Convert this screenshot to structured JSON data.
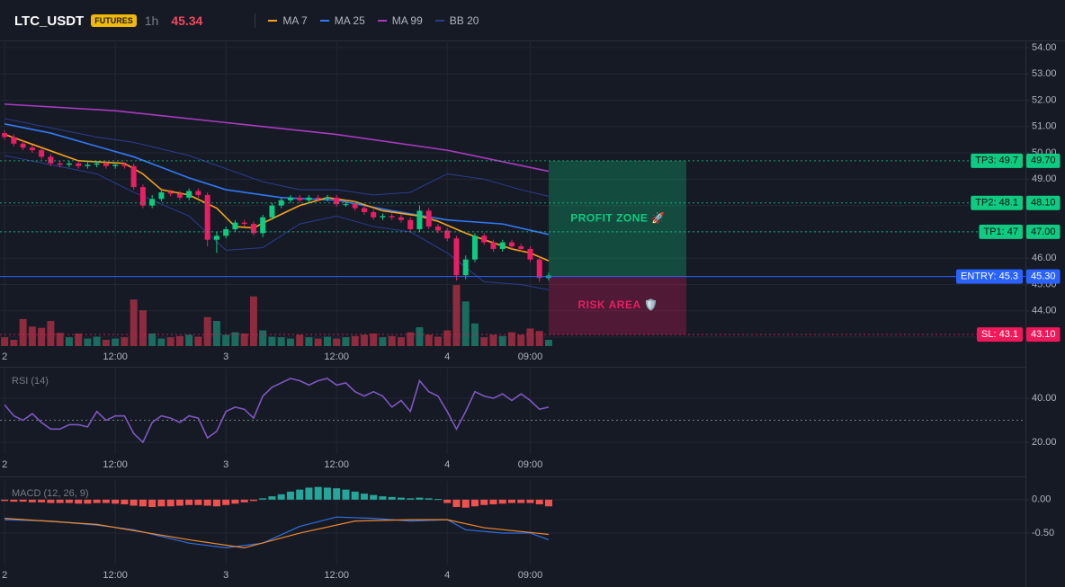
{
  "header": {
    "symbol": "LTC_USDT",
    "badge": "FUTURES",
    "interval": "1h",
    "price": "45.34"
  },
  "chart_data": [
    {
      "type": "candlestick",
      "up_color": "#0ecb81",
      "down_color": "#e91e63",
      "volume_up_color": "#1b6b5e",
      "volume_down_color": "#8e2b3e",
      "xlim": [
        -0.5,
        110.7
      ],
      "ylim": [
        42.66,
        54.27
      ],
      "xticks": [
        {
          "value": 0,
          "label": "2"
        },
        {
          "value": 12,
          "label": "12:00"
        },
        {
          "value": 24,
          "label": "3"
        },
        {
          "value": 36,
          "label": "12:00"
        },
        {
          "value": 48,
          "label": "4"
        },
        {
          "value": 57,
          "label": "09:00"
        }
      ],
      "yticks": [
        {
          "value": 54,
          "label": "54.00"
        },
        {
          "value": 53,
          "label": "53.00"
        },
        {
          "value": 52,
          "label": "52.00"
        },
        {
          "value": 51,
          "label": "51.00"
        },
        {
          "value": 50,
          "label": "50.00"
        },
        {
          "value": 49,
          "label": "49.00"
        },
        {
          "value": 48,
          "label": "48.00"
        },
        {
          "value": 47,
          "label": "47.00"
        },
        {
          "value": 46,
          "label": "46.00"
        },
        {
          "value": 45,
          "label": "45.00"
        },
        {
          "value": 44,
          "label": "44.00"
        },
        {
          "value": 43,
          "label": "43.00"
        }
      ],
      "x": [
        0,
        1,
        2,
        3,
        4,
        5,
        6,
        7,
        8,
        9,
        10,
        11,
        12,
        13,
        14,
        15,
        16,
        17,
        18,
        19,
        20,
        21,
        22,
        23,
        24,
        25,
        26,
        27,
        28,
        29,
        30,
        31,
        32,
        33,
        34,
        35,
        36,
        37,
        38,
        39,
        40,
        41,
        42,
        43,
        44,
        45,
        46,
        47,
        48,
        49,
        50,
        51,
        52,
        53,
        54,
        55,
        56,
        57,
        58,
        59
      ],
      "open": [
        50.75,
        50.6,
        50.35,
        50.2,
        50.1,
        49.85,
        49.6,
        49.55,
        49.6,
        49.5,
        49.55,
        49.6,
        49.5,
        49.55,
        49.5,
        48.7,
        48.0,
        48.25,
        48.5,
        48.45,
        48.3,
        48.55,
        48.4,
        46.7,
        46.85,
        47.1,
        47.35,
        47.3,
        46.95,
        47.55,
        48.0,
        48.2,
        48.3,
        48.2,
        48.3,
        48.25,
        48.3,
        48.05,
        48.05,
        47.9,
        47.75,
        47.55,
        47.6,
        47.55,
        47.45,
        47.1,
        47.8,
        47.2,
        47.05,
        46.75,
        45.35,
        45.95,
        46.85,
        46.6,
        46.35,
        46.6,
        46.45,
        46.35,
        45.95,
        45.25
      ],
      "high": [
        50.85,
        50.7,
        50.45,
        50.3,
        50.2,
        49.95,
        49.7,
        49.7,
        49.7,
        49.65,
        49.7,
        49.7,
        49.65,
        49.65,
        49.6,
        48.8,
        48.4,
        48.65,
        48.6,
        48.55,
        48.65,
        48.65,
        48.5,
        47.0,
        47.2,
        47.45,
        47.45,
        47.4,
        47.65,
        48.1,
        48.3,
        48.4,
        48.4,
        48.4,
        48.4,
        48.4,
        48.4,
        48.15,
        48.15,
        48.0,
        47.85,
        47.7,
        47.7,
        47.65,
        47.55,
        48.0,
        47.9,
        47.3,
        47.15,
        46.85,
        46.1,
        46.95,
        46.95,
        46.7,
        46.7,
        46.7,
        46.55,
        46.45,
        46.05,
        45.45
      ],
      "low": [
        50.5,
        50.25,
        50.1,
        50.0,
        49.75,
        49.5,
        49.45,
        49.45,
        49.4,
        49.4,
        49.45,
        49.4,
        49.4,
        49.4,
        48.6,
        47.9,
        47.9,
        48.15,
        48.35,
        48.2,
        48.2,
        48.3,
        46.45,
        46.2,
        46.75,
        47.0,
        47.2,
        46.85,
        46.8,
        47.45,
        47.9,
        48.1,
        48.1,
        48.1,
        48.15,
        48.15,
        47.95,
        47.95,
        47.8,
        47.65,
        47.45,
        47.45,
        47.45,
        47.35,
        47.0,
        47.0,
        47.1,
        46.95,
        46.65,
        45.15,
        45.2,
        45.85,
        46.5,
        46.25,
        46.25,
        46.35,
        46.25,
        45.85,
        45.1,
        45.15
      ],
      "close": [
        50.6,
        50.35,
        50.2,
        50.1,
        49.85,
        49.6,
        49.55,
        49.6,
        49.5,
        49.55,
        49.6,
        49.5,
        49.55,
        49.5,
        48.7,
        48.0,
        48.25,
        48.5,
        48.45,
        48.3,
        48.55,
        48.4,
        46.7,
        46.85,
        47.1,
        47.35,
        47.3,
        46.95,
        47.55,
        48.0,
        48.2,
        48.3,
        48.2,
        48.3,
        48.25,
        48.3,
        48.05,
        48.05,
        47.9,
        47.75,
        47.55,
        47.6,
        47.55,
        47.45,
        47.1,
        47.8,
        47.2,
        47.05,
        46.75,
        45.35,
        45.95,
        46.85,
        46.6,
        46.35,
        46.6,
        46.45,
        46.35,
        45.95,
        45.25,
        45.34
      ],
      "volume": [
        14,
        10,
        43,
        31,
        29,
        40,
        21,
        14,
        20,
        12,
        15,
        10,
        12,
        14,
        74,
        57,
        20,
        12,
        14,
        16,
        18,
        15,
        46,
        40,
        18,
        22,
        20,
        79,
        25,
        15,
        14,
        12,
        18,
        14,
        12,
        15,
        12,
        14,
        16,
        18,
        20,
        14,
        16,
        14,
        22,
        30,
        18,
        15,
        25,
        97,
        71,
        36,
        14,
        18,
        16,
        22,
        18,
        28,
        24,
        10
      ],
      "overlays": [
        {
          "name": "MA 7",
          "color": "#f7a21b",
          "x": [
            0,
            4,
            8,
            13,
            15,
            17,
            20,
            23,
            25,
            27,
            29,
            32,
            35,
            38,
            41,
            45,
            47,
            50,
            52,
            55,
            57,
            59
          ],
          "values": [
            50.7,
            50.2,
            49.7,
            49.6,
            49.2,
            48.6,
            48.4,
            47.9,
            47.2,
            47.15,
            47.5,
            48.0,
            48.3,
            48.15,
            47.8,
            47.6,
            47.4,
            46.95,
            46.7,
            46.35,
            46.2,
            45.9
          ]
        },
        {
          "name": "MA 25",
          "color": "#3179f5",
          "x": [
            0,
            5,
            10,
            14,
            20,
            24,
            30,
            36,
            42,
            48,
            54,
            59
          ],
          "values": [
            51.1,
            50.75,
            50.25,
            49.85,
            49.05,
            48.6,
            48.3,
            48.2,
            47.8,
            47.45,
            47.3,
            46.9
          ]
        },
        {
          "name": "MA 99",
          "color": "#a93bc0",
          "x": [
            0,
            12,
            24,
            36,
            48,
            59
          ],
          "values": [
            51.85,
            51.6,
            51.15,
            50.7,
            50.1,
            49.3
          ]
        }
      ],
      "bands": [
        {
          "name": "BB 20",
          "color": "#2b3c8f",
          "x": [
            0,
            10,
            14,
            20,
            24,
            28,
            32,
            36,
            40,
            44,
            48,
            52,
            56,
            59
          ],
          "upper": [
            51.3,
            50.6,
            50.4,
            49.9,
            49.4,
            48.9,
            48.6,
            48.6,
            48.4,
            48.5,
            49.2,
            49.0,
            48.6,
            48.35
          ],
          "lower": [
            49.9,
            49.2,
            48.5,
            47.6,
            46.3,
            46.4,
            47.3,
            47.6,
            47.2,
            47.0,
            46.2,
            45.1,
            45.0,
            44.8
          ]
        }
      ],
      "levels": [
        {
          "label": "TP3: 49.7",
          "value": 49.7,
          "value_label": "49.70",
          "color": "#0ecb81"
        },
        {
          "label": "TP2: 48.1",
          "value": 48.1,
          "value_label": "48.10",
          "color": "#0ecb81"
        },
        {
          "label": "TP1: 47",
          "value": 47,
          "value_label": "47.00",
          "color": "#0ecb81"
        },
        {
          "label": "ENTRY: 45.3",
          "value": 45.3,
          "value_label": "45.30",
          "color": "#2962ff"
        },
        {
          "label": "SL: 43.1",
          "value": 43.1,
          "value_label": "43.10",
          "color": "#f0185a"
        }
      ],
      "zones": [
        {
          "label": "PROFIT ZONE 🚀",
          "from": 45.3,
          "to": 49.7,
          "color": "#0ecb81"
        },
        {
          "label": "RISK AREA 🛡️",
          "from": 43.1,
          "to": 45.3,
          "color": "#e91e63"
        }
      ]
    },
    {
      "type": "line",
      "title": "RSI (14)",
      "color": "#7e57c2",
      "xlim": [
        -0.5,
        110.7
      ],
      "ylim": [
        14.7,
        53.5
      ],
      "xticks": [
        {
          "value": 0,
          "label": "2"
        },
        {
          "value": 12,
          "label": "12:00"
        },
        {
          "value": 24,
          "label": "3"
        },
        {
          "value": 36,
          "label": "12:00"
        },
        {
          "value": 48,
          "label": "4"
        },
        {
          "value": 57,
          "label": "09:00"
        }
      ],
      "yticks": [
        {
          "value": 40,
          "label": "40.00"
        },
        {
          "value": 20,
          "label": "20.00"
        }
      ],
      "hline": 30,
      "x": [
        0,
        1,
        2,
        3,
        4,
        5,
        6,
        7,
        8,
        9,
        10,
        11,
        12,
        13,
        14,
        15,
        16,
        17,
        18,
        19,
        20,
        21,
        22,
        23,
        24,
        25,
        26,
        27,
        28,
        29,
        30,
        31,
        32,
        33,
        34,
        35,
        36,
        37,
        38,
        39,
        40,
        41,
        42,
        43,
        44,
        45,
        46,
        47,
        48,
        49,
        50,
        51,
        52,
        53,
        54,
        55,
        56,
        57,
        58,
        59
      ],
      "values": [
        37,
        32,
        30,
        33,
        29,
        26,
        26,
        28,
        28,
        27,
        34,
        30,
        32,
        32,
        24,
        20,
        29,
        32,
        31,
        29,
        32,
        31,
        22,
        25,
        34,
        36,
        35,
        31,
        41,
        45,
        47,
        49,
        48,
        46,
        48,
        49,
        46,
        47,
        43,
        41,
        43,
        41,
        36,
        39,
        34,
        48,
        43,
        41,
        34,
        26,
        34,
        43,
        41,
        40,
        42,
        39,
        42,
        39,
        35,
        36
      ]
    },
    {
      "type": "macd",
      "title": "MACD (12, 26, 9)",
      "xlim": [
        -0.5,
        110.7
      ],
      "ylim": [
        -0.97,
        0.28
      ],
      "xticks": [
        {
          "value": 0,
          "label": "2"
        },
        {
          "value": 12,
          "label": "12:00"
        },
        {
          "value": 24,
          "label": "3"
        },
        {
          "value": 36,
          "label": "12:00"
        },
        {
          "value": 48,
          "label": "4"
        },
        {
          "value": 57,
          "label": "09:00"
        }
      ],
      "yticks": [
        {
          "value": 0,
          "label": "0.00"
        },
        {
          "value": -0.5,
          "label": "-0.50"
        }
      ],
      "up_color": "#26a69a",
      "down_color": "#ef5350",
      "x": [
        0,
        1,
        2,
        3,
        4,
        5,
        6,
        7,
        8,
        9,
        10,
        11,
        12,
        13,
        14,
        15,
        16,
        17,
        18,
        19,
        20,
        21,
        22,
        23,
        24,
        25,
        26,
        27,
        28,
        29,
        30,
        31,
        32,
        33,
        34,
        35,
        36,
        37,
        38,
        39,
        40,
        41,
        42,
        43,
        44,
        45,
        46,
        47,
        48,
        49,
        50,
        51,
        52,
        53,
        54,
        55,
        56,
        57,
        58,
        59
      ],
      "histogram": [
        -0.02,
        -0.03,
        -0.03,
        -0.04,
        -0.04,
        -0.05,
        -0.05,
        -0.05,
        -0.06,
        -0.06,
        -0.05,
        -0.05,
        -0.06,
        -0.07,
        -0.09,
        -0.1,
        -0.11,
        -0.1,
        -0.1,
        -0.09,
        -0.08,
        -0.08,
        -0.09,
        -0.1,
        -0.08,
        -0.06,
        -0.04,
        -0.02,
        0.02,
        0.05,
        0.08,
        0.12,
        0.15,
        0.18,
        0.19,
        0.18,
        0.17,
        0.15,
        0.12,
        0.09,
        0.07,
        0.05,
        0.04,
        0.03,
        0.02,
        0.03,
        0.02,
        0.01,
        -0.05,
        -0.11,
        -0.12,
        -0.1,
        -0.08,
        -0.07,
        -0.06,
        -0.05,
        -0.05,
        -0.05,
        -0.07,
        -0.1
      ],
      "series": [
        {
          "color": "#2f6fe0",
          "x": [
            0,
            5,
            10,
            14,
            20,
            24,
            28,
            32,
            36,
            40,
            44,
            48,
            50,
            54,
            57,
            59
          ],
          "values": [
            -0.3,
            -0.32,
            -0.38,
            -0.45,
            -0.65,
            -0.72,
            -0.65,
            -0.4,
            -0.26,
            -0.28,
            -0.32,
            -0.3,
            -0.45,
            -0.5,
            -0.5,
            -0.6
          ]
        },
        {
          "color": "#f0892b",
          "x": [
            0,
            10,
            20,
            26,
            32,
            38,
            44,
            48,
            52,
            57,
            59
          ],
          "values": [
            -0.28,
            -0.37,
            -0.6,
            -0.72,
            -0.5,
            -0.32,
            -0.3,
            -0.3,
            -0.42,
            -0.49,
            -0.52
          ]
        }
      ]
    }
  ]
}
